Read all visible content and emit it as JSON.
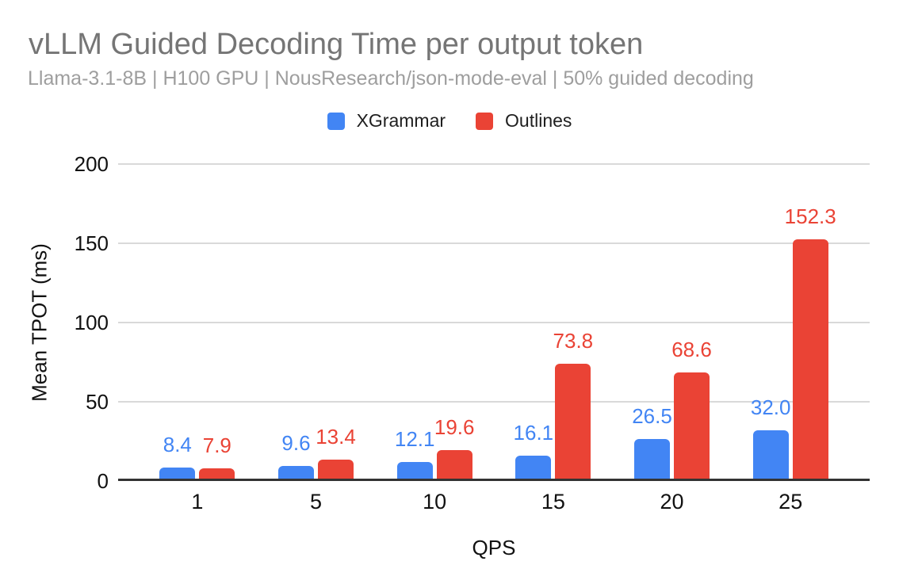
{
  "chart_data": {
    "type": "bar",
    "title": "vLLM Guided Decoding Time per output token",
    "subtitle": "Llama-3.1-8B | H100 GPU | NousResearch/json-mode-eval | 50% guided decoding",
    "xlabel": "QPS",
    "ylabel": "Mean TPOT (ms)",
    "categories": [
      "1",
      "5",
      "10",
      "15",
      "20",
      "25"
    ],
    "series": [
      {
        "name": "XGrammar",
        "color": "#4285F4",
        "values": [
          8.4,
          9.6,
          12.1,
          16.1,
          26.5,
          32.0
        ],
        "labels": [
          "8.4",
          "9.6",
          "12.1",
          "16.1",
          "26.5",
          "32.0"
        ]
      },
      {
        "name": "Outlines",
        "color": "#EA4335",
        "values": [
          7.9,
          13.4,
          19.6,
          73.8,
          68.6,
          152.3
        ],
        "labels": [
          "7.9",
          "13.4",
          "19.6",
          "73.8",
          "68.6",
          "152.3"
        ]
      }
    ],
    "ylim": [
      0,
      200
    ],
    "y_ticks": [
      0,
      50,
      100,
      150,
      200
    ],
    "grid": true,
    "legend_position": "top",
    "data_labels": true,
    "background": "#FFFFFF"
  },
  "style": {
    "title_color": "#757575",
    "subtitle_color": "#9E9E9E",
    "axis_text_color": "#111111",
    "gridline_color": "#D9D9D9",
    "axis_line_color": "#333333"
  }
}
